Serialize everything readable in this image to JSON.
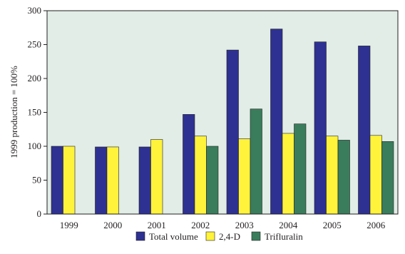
{
  "chart_data": {
    "type": "bar",
    "title": "",
    "xlabel": "",
    "ylabel": "1999 production = 100%",
    "ylim": [
      0,
      300
    ],
    "yticks": [
      0,
      50,
      100,
      150,
      200,
      250,
      300
    ],
    "grid": false,
    "legend_position": "bottom",
    "categories": [
      "1999",
      "2000",
      "2001",
      "2002",
      "2003",
      "2004",
      "2005",
      "2006"
    ],
    "series": [
      {
        "name": "Total volume",
        "color": "#2e3192",
        "values": [
          100,
          99,
          99,
          147,
          242,
          273,
          254,
          248
        ]
      },
      {
        "name": "2,4-D",
        "color": "#fff33b",
        "values": [
          100,
          99,
          110,
          115,
          111,
          119,
          115,
          116
        ]
      },
      {
        "name": "Trifluralin",
        "color": "#3a7d5c",
        "values": [
          null,
          null,
          null,
          100,
          155,
          133,
          109,
          107
        ]
      }
    ],
    "plot_background": "#e1ede6",
    "text_color": "#231f20"
  }
}
